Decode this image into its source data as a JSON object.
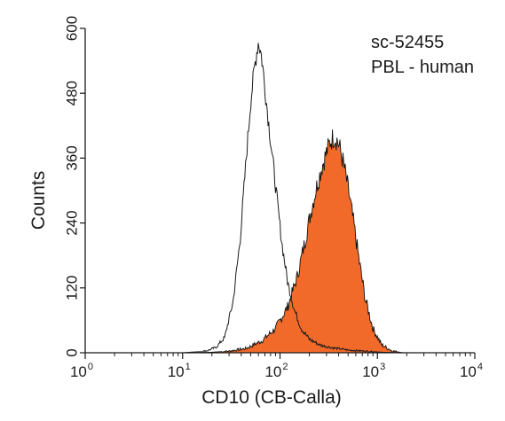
{
  "chart_data": {
    "type": "area",
    "title": "",
    "xlabel": "CD10 (CB-Calla)",
    "ylabel": "Counts",
    "xscale": "log",
    "xlim": [
      1,
      10000
    ],
    "ylim": [
      0,
      600
    ],
    "grid": false,
    "legend": "none",
    "annotations": [
      "sc-52455",
      "PBL - human"
    ],
    "x_ticks": [
      {
        "base": "10",
        "exp": "0",
        "value": 1
      },
      {
        "base": "10",
        "exp": "1",
        "value": 10
      },
      {
        "base": "10",
        "exp": "2",
        "value": 100
      },
      {
        "base": "10",
        "exp": "3",
        "value": 1000
      },
      {
        "base": "10",
        "exp": "4",
        "value": 10000
      }
    ],
    "y_ticks": [
      {
        "label": "0",
        "value": 0
      },
      {
        "label": "120",
        "value": 120
      },
      {
        "label": "240",
        "value": 240
      },
      {
        "label": "360",
        "value": 360
      },
      {
        "label": "480",
        "value": 480
      },
      {
        "label": "600",
        "value": 600
      }
    ],
    "series": [
      {
        "style": "outline",
        "color": "#1a1a1a",
        "x": [
          1,
          10,
          12,
          15,
          18,
          22,
          27,
          33,
          39,
          45,
          50,
          55,
          58,
          60,
          62,
          65,
          70,
          77,
          85,
          95,
          105,
          120,
          140,
          165,
          200,
          260,
          350,
          500,
          750,
          1100,
          2000,
          10000
        ],
        "y": [
          0,
          0,
          1,
          2,
          4,
          10,
          28,
          95,
          210,
          360,
          465,
          530,
          560,
          575,
          565,
          545,
          490,
          420,
          350,
          270,
          200,
          130,
          80,
          45,
          25,
          14,
          9,
          5,
          3,
          1,
          0,
          0
        ]
      },
      {
        "style": "filled",
        "color": "#f26a2a",
        "x": [
          1,
          12,
          20,
          30,
          45,
          65,
          90,
          120,
          150,
          180,
          210,
          240,
          270,
          300,
          330,
          360,
          390,
          420,
          460,
          510,
          570,
          650,
          750,
          900,
          1100,
          1400,
          1800,
          10000
        ],
        "y": [
          0,
          0,
          1,
          3,
          8,
          22,
          45,
          85,
          140,
          205,
          265,
          310,
          345,
          370,
          392,
          400,
          392,
          372,
          340,
          295,
          240,
          170,
          100,
          45,
          15,
          4,
          0,
          0
        ]
      }
    ]
  }
}
